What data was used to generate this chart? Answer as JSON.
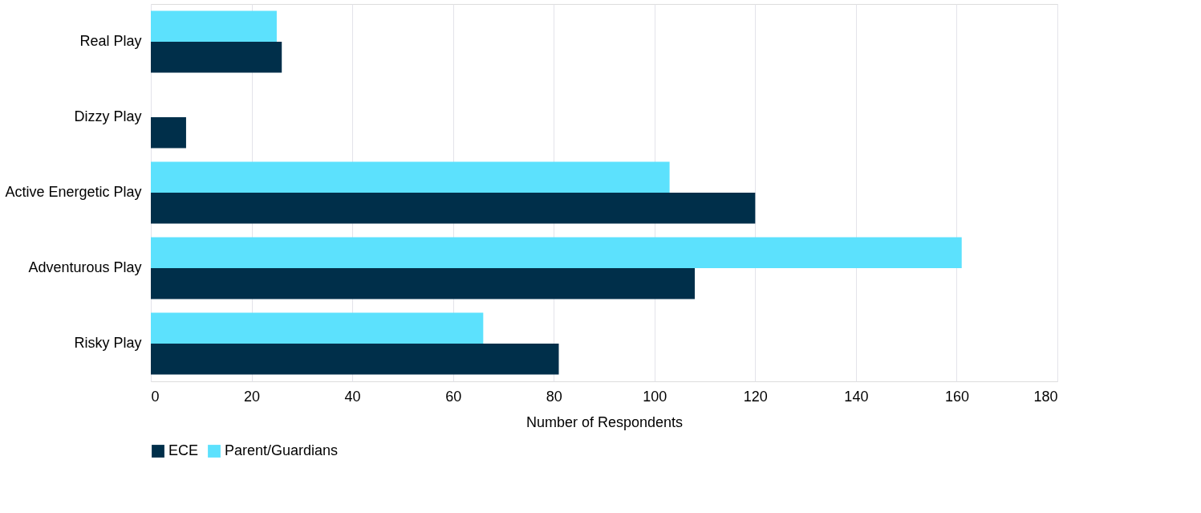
{
  "chart_data": {
    "type": "bar",
    "orientation": "horizontal",
    "xlabel": "Number of Respondents",
    "categories": [
      "Real Play",
      "Dizzy Play",
      "Active Energetic Play",
      "Adventurous Play",
      "Risky Play"
    ],
    "series": [
      {
        "name": "ECE",
        "color": "#002f4a",
        "values": [
          26,
          7,
          120,
          108,
          81
        ]
      },
      {
        "name": "Parent/Guardians",
        "color": "#5ce1fd",
        "values": [
          25,
          0,
          103,
          161,
          66
        ]
      }
    ],
    "xlim": [
      0,
      180
    ],
    "xticks": [
      0,
      20,
      40,
      60,
      80,
      100,
      120,
      140,
      160,
      180
    ],
    "grid": "x",
    "legend": "bottom"
  }
}
